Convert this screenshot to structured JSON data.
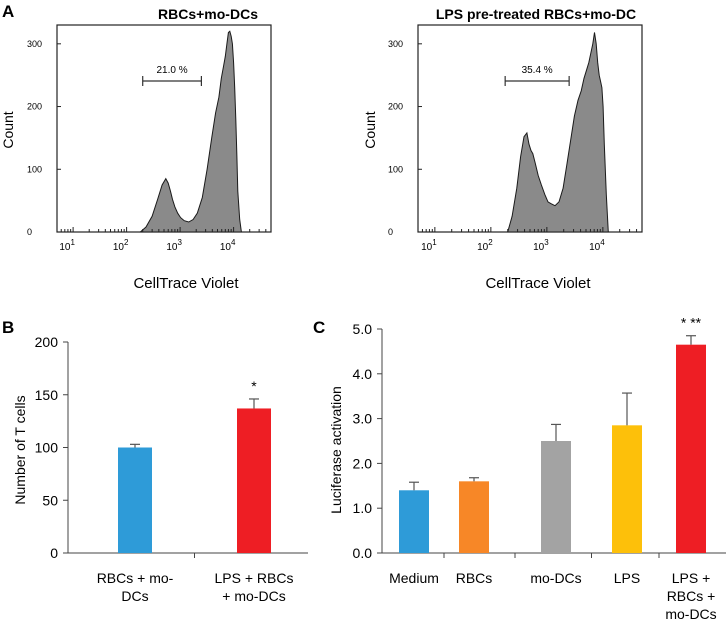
{
  "panels": {
    "a": "A",
    "b": "B",
    "c": "C"
  },
  "chart_data": [
    {
      "type": "area",
      "panel": "A",
      "title": "RBCs+mo-DCs",
      "xlabel": "CellTrace Violet",
      "ylabel": "Count",
      "xscale": "log",
      "xlim": [
        5,
        50000
      ],
      "ylim": [
        0,
        330
      ],
      "yticks": [
        0,
        100,
        200,
        300
      ],
      "xticks": [
        {
          "base": "10",
          "exp": "1",
          "v": 10
        },
        {
          "base": "10",
          "exp": "2",
          "v": 100
        },
        {
          "base": "10",
          "exp": "3",
          "v": 1000
        },
        {
          "base": "10",
          "exp": "4",
          "v": 10000
        }
      ],
      "gate": {
        "label": "21.0 %",
        "from": 200,
        "to": 2500
      },
      "x": [
        180,
        230,
        300,
        380,
        460,
        540,
        600,
        660,
        720,
        800,
        900,
        1020,
        1200,
        1450,
        1750,
        2100,
        2600,
        3200,
        3900,
        4600,
        5300,
        5900,
        6500,
        7000,
        7500,
        8000,
        8500,
        9000,
        9500,
        10000,
        10500,
        11000,
        11500,
        12000,
        13000,
        14000
      ],
      "y": [
        0,
        8,
        25,
        52,
        75,
        85,
        78,
        65,
        52,
        40,
        30,
        23,
        18,
        16,
        20,
        30,
        55,
        100,
        150,
        190,
        215,
        245,
        265,
        280,
        300,
        318,
        320,
        312,
        300,
        270,
        230,
        180,
        120,
        65,
        20,
        0
      ]
    },
    {
      "type": "area",
      "panel": "A",
      "title": "LPS pre-treated RBCs+mo-DC",
      "xlabel": "CellTrace Violet",
      "ylabel": "Count",
      "xscale": "log",
      "xlim": [
        5,
        50000
      ],
      "ylim": [
        0,
        330
      ],
      "yticks": [
        0,
        100,
        200,
        300
      ],
      "xticks": [
        {
          "base": "10",
          "exp": "1",
          "v": 10
        },
        {
          "base": "10",
          "exp": "2",
          "v": 100
        },
        {
          "base": "10",
          "exp": "3",
          "v": 1000
        },
        {
          "base": "10",
          "exp": "4",
          "v": 10000
        }
      ],
      "gate": {
        "label": "35.4 %",
        "from": 180,
        "to": 2500
      },
      "x": [
        200,
        240,
        290,
        340,
        390,
        440,
        480,
        520,
        560,
        620,
        700,
        800,
        920,
        1050,
        1200,
        1400,
        1650,
        1950,
        2300,
        2700,
        3100,
        3600,
        4100,
        4600,
        5100,
        5600,
        6100,
        6600,
        7100,
        7600,
        8100,
        8600,
        9100,
        9600,
        10100,
        10600,
        11500,
        12500
      ],
      "y": [
        0,
        25,
        70,
        120,
        152,
        158,
        140,
        130,
        125,
        110,
        90,
        75,
        60,
        48,
        45,
        42,
        48,
        70,
        110,
        150,
        185,
        210,
        225,
        245,
        258,
        270,
        285,
        300,
        318,
        300,
        270,
        250,
        240,
        230,
        200,
        140,
        60,
        0
      ]
    },
    {
      "type": "bar",
      "panel": "B",
      "ylabel": "Number of T cells",
      "ylim": [
        0,
        200
      ],
      "yticks": [
        "0",
        "50",
        "100",
        "150",
        "200"
      ],
      "categories": [
        [
          "RBCs + mo-",
          "DCs"
        ],
        [
          "LPS + RBCs",
          "+ mo-DCs"
        ]
      ],
      "values": [
        100,
        137
      ],
      "errors": [
        3,
        9
      ],
      "colors": [
        "#2E9BD8",
        "#EE1E24"
      ],
      "annotations": [
        "",
        "*"
      ]
    },
    {
      "type": "bar",
      "panel": "C",
      "ylabel": "Luciferase activation",
      "ylim": [
        0,
        5
      ],
      "yticks": [
        "0.0",
        "1.0",
        "2.0",
        "3.0",
        "4.0",
        "5.0"
      ],
      "categories": [
        [
          "Medium"
        ],
        [
          "RBCs"
        ],
        [
          "mo-DCs"
        ],
        [
          "LPS"
        ],
        [
          "LPS +",
          "RBCs +",
          "mo-DCs"
        ]
      ],
      "values": [
        1.4,
        1.6,
        2.5,
        2.85,
        4.65
      ],
      "errors": [
        0.18,
        0.08,
        0.37,
        0.72,
        0.2
      ],
      "colors": [
        "#2E9BD8",
        "#F78727",
        "#A3A3A3",
        "#FDC00A",
        "#EE1E24"
      ],
      "annotations": [
        "",
        "",
        "",
        "",
        "* **"
      ]
    }
  ]
}
